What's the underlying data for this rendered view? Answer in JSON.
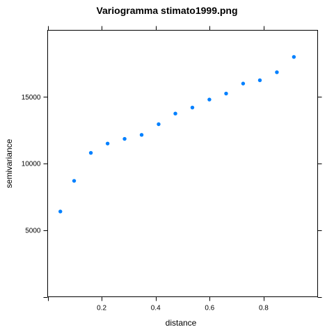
{
  "chart_data": {
    "type": "scatter",
    "title": "Variogramma stimato1999.png",
    "xlabel": "distance",
    "ylabel": "semivariance",
    "xlim": [
      0.0,
      1.0
    ],
    "ylim": [
      0,
      20000
    ],
    "xticks": [
      0.2,
      0.4,
      0.6,
      0.8
    ],
    "xtick_labels": [
      "0.2",
      "0.4",
      "0.6",
      "0.8"
    ],
    "yticks": [
      5000,
      10000,
      15000
    ],
    "ytick_labels": [
      "5000",
      "10000",
      "15000"
    ],
    "grid": false,
    "legend": "none",
    "point_color": "#0080ff",
    "series": [
      {
        "x": [
          0.047,
          0.098,
          0.16,
          0.222,
          0.285,
          0.348,
          0.411,
          0.473,
          0.536,
          0.599,
          0.661,
          0.724,
          0.786,
          0.849,
          0.912
        ],
        "y": [
          6400,
          8700,
          10800,
          11500,
          11850,
          12150,
          12950,
          13750,
          14200,
          14800,
          15250,
          16000,
          16250,
          16850,
          18000
        ]
      }
    ]
  }
}
